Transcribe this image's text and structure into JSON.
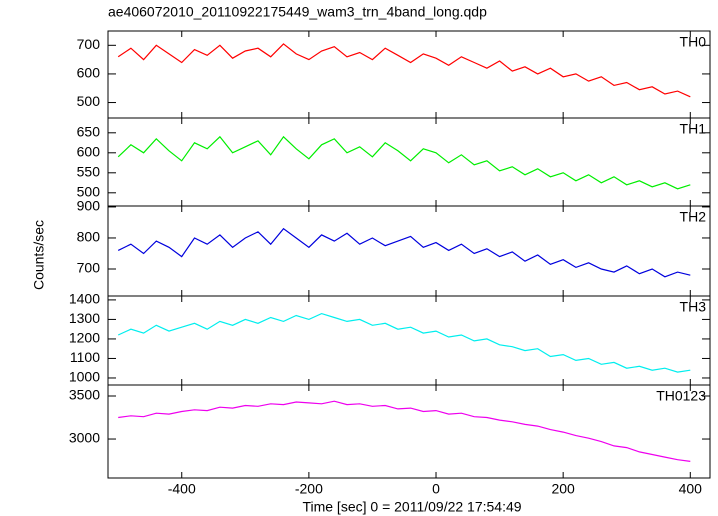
{
  "chart_data": {
    "type": "line",
    "title": "ae406072010_20110922175449_wam3_trn_4band_long.qdp",
    "xlabel": "Time [sec] 0 = 2011/09/22 17:54:49",
    "ylabel": "Counts/sec",
    "xlim": [
      -516,
      431
    ],
    "xticks": [
      -400,
      -200,
      0,
      200,
      400
    ],
    "x": [
      -500,
      -480,
      -460,
      -440,
      -420,
      -400,
      -380,
      -360,
      -340,
      -320,
      -300,
      -280,
      -260,
      -240,
      -220,
      -200,
      -180,
      -160,
      -140,
      -120,
      -100,
      -80,
      -60,
      -40,
      -20,
      0,
      20,
      40,
      60,
      80,
      100,
      120,
      140,
      160,
      180,
      200,
      220,
      240,
      260,
      280,
      300,
      320,
      340,
      360,
      380,
      400
    ],
    "series": [
      {
        "name": "TH0",
        "color": "#ff0000",
        "ylim": [
          446,
          750
        ],
        "yticks": [
          500,
          600,
          700
        ],
        "values": [
          660,
          690,
          650,
          700,
          670,
          640,
          685,
          665,
          700,
          655,
          680,
          690,
          660,
          705,
          670,
          650,
          680,
          695,
          660,
          675,
          650,
          690,
          665,
          640,
          670,
          655,
          630,
          660,
          640,
          620,
          645,
          610,
          625,
          600,
          620,
          590,
          600,
          575,
          590,
          560,
          570,
          545,
          555,
          530,
          540,
          520
        ]
      },
      {
        "name": "TH1",
        "color": "#00ee00",
        "ylim": [
          467,
          687
        ],
        "yticks": [
          500,
          550,
          600,
          650
        ],
        "values": [
          590,
          620,
          600,
          635,
          605,
          580,
          625,
          610,
          640,
          600,
          615,
          630,
          595,
          640,
          610,
          585,
          620,
          635,
          600,
          615,
          590,
          625,
          605,
          580,
          610,
          600,
          575,
          595,
          570,
          580,
          555,
          565,
          545,
          560,
          540,
          550,
          530,
          545,
          525,
          540,
          520,
          530,
          515,
          525,
          510,
          520
        ]
      },
      {
        "name": "TH2",
        "color": "#0000dd",
        "ylim": [
          613,
          903
        ],
        "yticks": [
          700,
          800,
          900
        ],
        "values": [
          760,
          780,
          750,
          790,
          770,
          740,
          800,
          780,
          810,
          770,
          800,
          820,
          780,
          830,
          800,
          770,
          810,
          790,
          815,
          780,
          800,
          775,
          790,
          805,
          770,
          785,
          760,
          780,
          750,
          765,
          740,
          755,
          725,
          745,
          715,
          730,
          705,
          720,
          700,
          690,
          710,
          685,
          700,
          675,
          690,
          680
        ]
      },
      {
        "name": "TH3",
        "color": "#00eeee",
        "ylim": [
          964,
          1420
        ],
        "yticks": [
          1000,
          1100,
          1200,
          1300,
          1400
        ],
        "values": [
          1220,
          1250,
          1230,
          1270,
          1240,
          1260,
          1280,
          1250,
          1290,
          1270,
          1300,
          1280,
          1310,
          1290,
          1320,
          1300,
          1330,
          1310,
          1290,
          1300,
          1270,
          1280,
          1250,
          1260,
          1230,
          1240,
          1210,
          1220,
          1190,
          1200,
          1170,
          1160,
          1140,
          1150,
          1110,
          1120,
          1090,
          1100,
          1070,
          1080,
          1050,
          1060,
          1040,
          1050,
          1030,
          1040
        ]
      },
      {
        "name": "TH0123",
        "color": "#ee00ee",
        "ylim": [
          2547,
          3628
        ],
        "yticks": [
          3000,
          3500
        ],
        "values": [
          3250,
          3270,
          3260,
          3300,
          3290,
          3320,
          3340,
          3330,
          3370,
          3360,
          3390,
          3380,
          3410,
          3400,
          3430,
          3420,
          3410,
          3440,
          3400,
          3410,
          3380,
          3390,
          3350,
          3360,
          3320,
          3330,
          3290,
          3300,
          3260,
          3250,
          3220,
          3200,
          3170,
          3150,
          3110,
          3080,
          3040,
          3010,
          2970,
          2920,
          2900,
          2850,
          2820,
          2790,
          2760,
          2740
        ]
      }
    ]
  }
}
